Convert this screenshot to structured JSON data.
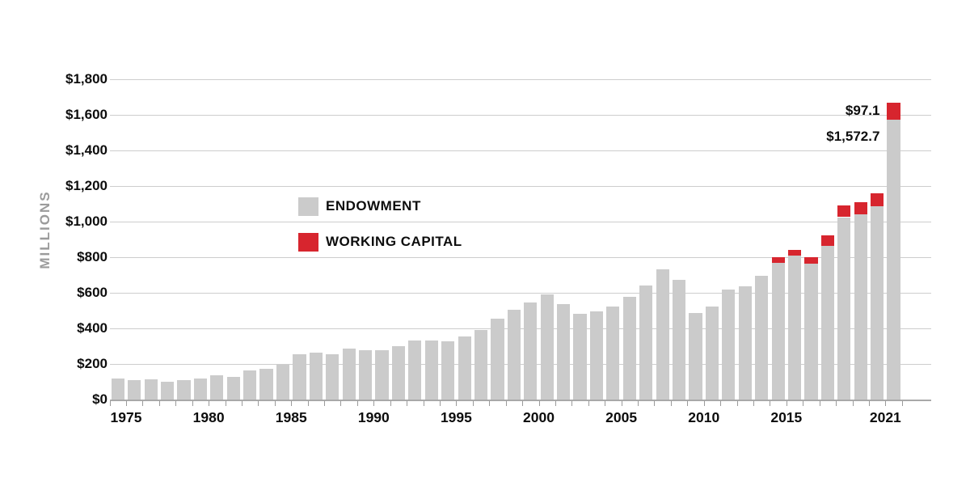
{
  "chart_data": {
    "type": "bar",
    "stacked": true,
    "title": "",
    "ylabel": "MILLIONS",
    "xlabel": "",
    "ylim": [
      0,
      1800
    ],
    "ytick_step": 200,
    "ytick_labels": [
      "$0",
      "$200",
      "$400",
      "$600",
      "$800",
      "$1,000",
      "$1,200",
      "$1,400",
      "$1,600",
      "$1,800"
    ],
    "grid": true,
    "legend_position": "center-left",
    "years": [
      1974,
      1975,
      1976,
      1977,
      1978,
      1979,
      1980,
      1981,
      1982,
      1983,
      1984,
      1985,
      1986,
      1987,
      1988,
      1989,
      1990,
      1991,
      1992,
      1993,
      1994,
      1995,
      1996,
      1997,
      1998,
      1999,
      2000,
      2001,
      2002,
      2003,
      2004,
      2005,
      2006,
      2007,
      2008,
      2009,
      2010,
      2011,
      2012,
      2013,
      2014,
      2015,
      2016,
      2017,
      2018,
      2019,
      2020,
      2021
    ],
    "xtick_labeled_years": [
      1975,
      1980,
      1985,
      1990,
      1995,
      2000,
      2005,
      2010,
      2015,
      2021
    ],
    "xtick_labels": [
      "1975",
      "1980",
      "1985",
      "1990",
      "1995",
      "2000",
      "2005",
      "2010",
      "2015",
      "2021"
    ],
    "series": [
      {
        "name": "ENDOWMENT",
        "color": "#cbcbcb",
        "values": [
          120,
          108,
          112,
          100,
          109,
          120,
          135,
          127,
          162,
          171,
          195,
          253,
          265,
          255,
          288,
          277,
          277,
          299,
          333,
          330,
          326,
          355,
          392,
          455,
          503,
          545,
          590,
          538,
          483,
          495,
          521,
          579,
          640,
          730,
          673,
          488,
          523,
          617,
          635,
          697,
          770,
          810,
          765,
          865,
          1025,
          1040,
          1085,
          1572.7
        ]
      },
      {
        "name": "WORKING CAPITAL",
        "color": "#d7252e",
        "values": [
          0,
          0,
          0,
          0,
          0,
          0,
          0,
          0,
          0,
          0,
          0,
          0,
          0,
          0,
          0,
          0,
          0,
          0,
          0,
          0,
          0,
          0,
          0,
          0,
          0,
          0,
          0,
          0,
          0,
          0,
          0,
          0,
          0,
          0,
          0,
          0,
          0,
          0,
          0,
          0,
          32,
          32,
          33,
          60,
          68,
          69,
          72,
          97.1
        ]
      }
    ],
    "annotations": [
      {
        "text": "$97.1",
        "year": 2021,
        "series": "WORKING CAPITAL"
      },
      {
        "text": "$1,572.7",
        "year": 2021,
        "series": "ENDOWMENT"
      }
    ]
  },
  "legend": {
    "endowment_label": "ENDOWMENT",
    "working_capital_label": "WORKING CAPITAL"
  },
  "axis": {
    "y_title": "MILLIONS"
  },
  "colors": {
    "endowment_bar": "#cbcbcb",
    "working_capital_bar": "#d7252e",
    "gridline": "#cdcdcd",
    "axis_text": "#0d0d0d",
    "y_title_text": "#9b9b9b"
  }
}
